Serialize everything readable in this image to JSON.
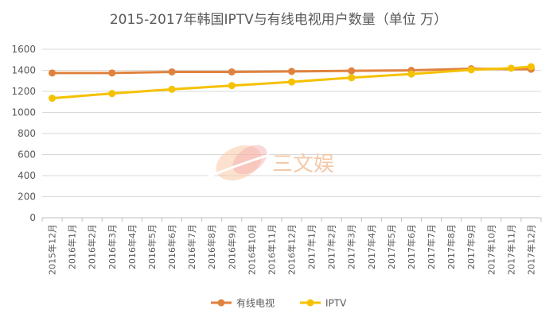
{
  "chart_data": {
    "type": "line",
    "title": "2015-2017年韩国IPTV与有线电视用户数量（单位 万）",
    "categories": [
      "2015年12月",
      "2016年1月",
      "2016年2月",
      "2016年3月",
      "2016年4月",
      "2016年5月",
      "2016年6月",
      "2016年7月",
      "2016年8月",
      "2016年9月",
      "2016年10月",
      "2016年11月",
      "2016年12月",
      "2017年1月",
      "2017年2月",
      "2017年3月",
      "2017年4月",
      "2017年5月",
      "2017年6月",
      "2017年7月",
      "2017年8月",
      "2017年9月",
      "2017年10月",
      "2017年11月",
      "2017年12月"
    ],
    "series": [
      {
        "name": "有线电视",
        "color": "#e0823d",
        "x": [
          0,
          3,
          6,
          9,
          12,
          15,
          18,
          21,
          24
        ],
        "values": [
          1375,
          1375,
          1385,
          1385,
          1390,
          1395,
          1400,
          1415,
          1410
        ]
      },
      {
        "name": "IPTV",
        "color": "#f5c100",
        "x": [
          0,
          3,
          6,
          9,
          12,
          15,
          18,
          21,
          23,
          24
        ],
        "values": [
          1135,
          1180,
          1220,
          1255,
          1290,
          1330,
          1365,
          1405,
          1420,
          1435
        ]
      }
    ],
    "ylim": [
      0,
      1600
    ],
    "yticks": [
      0,
      200,
      400,
      600,
      800,
      1000,
      1200,
      1400,
      1600
    ],
    "grid": true,
    "legend_position": "bottom"
  },
  "watermark": {
    "text": "三文娱"
  }
}
